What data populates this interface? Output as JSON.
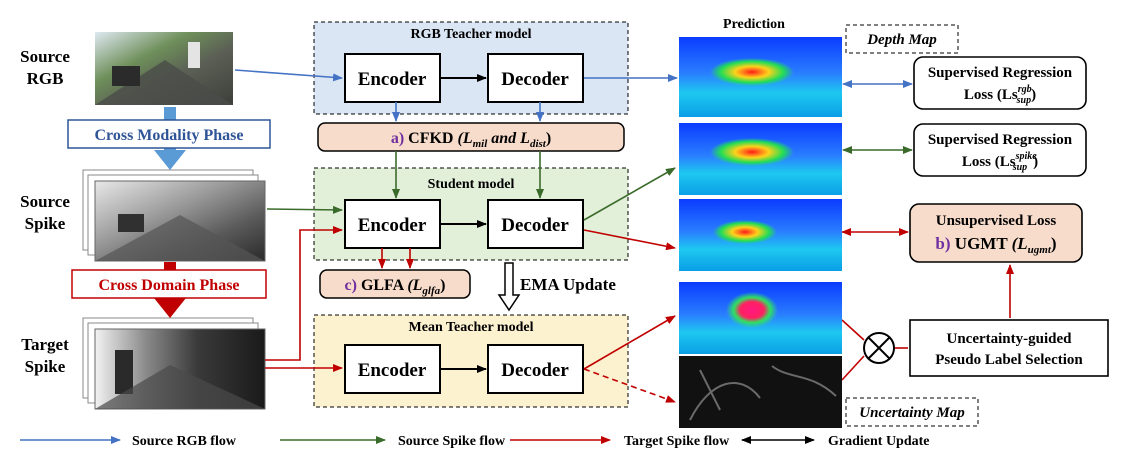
{
  "inputs": {
    "source_rgb": [
      "Source",
      "RGB"
    ],
    "source_spike": [
      "Source",
      "Spike"
    ],
    "target_spike": [
      "Target",
      "Spike"
    ]
  },
  "phases": {
    "cross_modality": "Cross Modality  Phase",
    "cross_domain": "Cross Domain Phase"
  },
  "models": {
    "rgb_teacher": "RGB Teacher model",
    "student": "Student model",
    "mean_teacher": "Mean Teacher model",
    "encoder": "Encoder",
    "decoder": "Decoder"
  },
  "modules": {
    "cfkd": {
      "prefix": "a)",
      "name": "CFKD",
      "formula": "(L",
      "sub1": "mil",
      "mid": " and L",
      "sub2": "dist",
      "end": ")"
    },
    "glfa": {
      "prefix": "c)",
      "name": "GLFA",
      "formula": "(L",
      "sub": "glfa",
      "end": ")"
    },
    "ema": "EMA Update"
  },
  "prediction": {
    "title": "Prediction",
    "depth_map": "Depth Map",
    "uncertainty_map": "Uncertainty Map"
  },
  "losses": {
    "sup_rgb": {
      "line1": "Supervised Regression",
      "line2": "Loss (Ls",
      "sup": "rgb",
      "sub": "sup",
      "end": ")"
    },
    "sup_spike": {
      "line1": "Supervised Regression",
      "line2": "Loss (Ls",
      "sup": "spike",
      "sub": "sup",
      "end": ")"
    },
    "unsup": {
      "line1": "Unsupervised Loss",
      "prefix": "b)",
      "name": "UGMT",
      "formula": "(L",
      "sub": "ugmt",
      "end": ")"
    },
    "selection": [
      "Uncertainty-guided",
      "Pseudo Label Selection"
    ]
  },
  "legend": [
    {
      "label": "Source RGB flow",
      "color": "#4472c4"
    },
    {
      "label": "Source Spike flow",
      "color": "#3a6b2a"
    },
    {
      "label": "Target Spike flow",
      "color": "#c00000"
    },
    {
      "label": "Gradient Update",
      "color": "#000000"
    }
  ],
  "colors": {
    "rgb_panel": "#dae6f4",
    "student_panel": "#e2efd9",
    "mean_panel": "#fdf2d0",
    "module_fill": "#f8dccb",
    "phase_blue": "#2f5597",
    "phase_red": "#c00000",
    "prefix_purple": "#7030a0"
  }
}
